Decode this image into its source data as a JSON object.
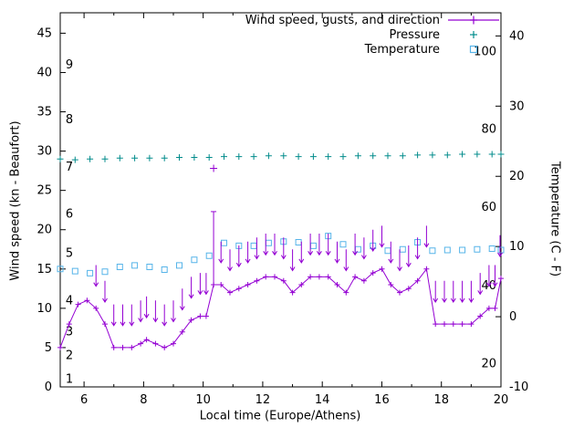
{
  "legend": {
    "wind_label": "Wind speed, gusts, and direction",
    "pressure_label": "Pressure",
    "temperature_label": "Temperature"
  },
  "axes": {
    "x_label": "Local time (Europe/Athens)",
    "y_left_label": "Wind speed (kn - Beaufort)",
    "y_right_label": "Temperature (C - F)"
  },
  "colors": {
    "wind": "#9400d3",
    "pressure": "#008b8b",
    "temperature": "#56b4e9",
    "axis": "#000000"
  },
  "chart_data": {
    "type": "line",
    "title": "",
    "legend_position": "top-right",
    "grid": false,
    "x_axis": {
      "label": "Local time (Europe/Athens)",
      "range": [
        5.2,
        20
      ],
      "major_ticks": [
        6,
        8,
        10,
        12,
        14,
        16,
        18,
        20
      ],
      "minor_ticks": [
        7,
        9,
        11,
        13,
        15,
        17,
        19
      ]
    },
    "y_left_axis": {
      "label": "Wind speed (kn - Beaufort)",
      "range": [
        0,
        47.6
      ],
      "ticks": [
        0,
        5,
        10,
        15,
        20,
        25,
        30,
        35,
        40,
        45
      ],
      "beaufort_labels": [
        {
          "label": "1",
          "kn": 1
        },
        {
          "label": "2",
          "kn": 4
        },
        {
          "label": "3",
          "kn": 7
        },
        {
          "label": "4",
          "kn": 11
        },
        {
          "label": "5",
          "kn": 17
        },
        {
          "label": "6",
          "kn": 22
        },
        {
          "label": "7",
          "kn": 28
        },
        {
          "label": "8",
          "kn": 34
        },
        {
          "label": "9",
          "kn": 41
        }
      ]
    },
    "y_right_axis": {
      "label": "Temperature (C - F)",
      "range": [
        -10,
        43.3
      ],
      "ticks": [
        -10,
        0,
        10,
        20,
        30,
        40
      ],
      "fahrenheit_labels": [
        {
          "label": "20",
          "c": -6.7
        },
        {
          "label": "40",
          "c": 4.4
        },
        {
          "label": "60",
          "c": 15.6
        },
        {
          "label": "80",
          "c": 26.7
        },
        {
          "label": "100",
          "c": 37.8
        }
      ]
    },
    "series": [
      {
        "id": "wind",
        "name": "Wind speed, gusts, and direction",
        "type": "line+points",
        "marker": "plus",
        "axis": "left",
        "unit": "kn",
        "x": [
          5.2,
          5.5,
          5.8,
          6.1,
          6.4,
          6.7,
          7.0,
          7.3,
          7.6,
          7.9,
          8.1,
          8.4,
          8.7,
          9.0,
          9.3,
          9.6,
          9.9,
          10.1,
          10.35,
          10.6,
          10.9,
          11.2,
          11.5,
          11.8,
          12.1,
          12.4,
          12.7,
          13.0,
          13.3,
          13.6,
          13.9,
          14.2,
          14.5,
          14.8,
          15.1,
          15.4,
          15.7,
          16.0,
          16.3,
          16.6,
          16.9,
          17.2,
          17.5,
          17.8,
          18.1,
          18.4,
          18.7,
          19.0,
          19.3,
          19.6,
          19.8,
          20.0
        ],
        "y": [
          5,
          8,
          10.5,
          11,
          10,
          8,
          5,
          5,
          5,
          5.5,
          6,
          5.5,
          5,
          5.5,
          7,
          8.5,
          9,
          9,
          13,
          13,
          12,
          12.5,
          13,
          13.5,
          14,
          14,
          13.5,
          12,
          13,
          14,
          14,
          14,
          13,
          12,
          14,
          13.5,
          14.5,
          15,
          13,
          12,
          12.5,
          13.5,
          15,
          8,
          8,
          8,
          8,
          8,
          9,
          10,
          10,
          13.8
        ]
      },
      {
        "id": "pressure",
        "name": "Pressure",
        "type": "points",
        "marker": "plus",
        "axis": "left",
        "note": "no numeric pressure scale shown; plotted near 29 on left axis",
        "x": [
          5.2,
          5.7,
          6.2,
          6.7,
          7.2,
          7.7,
          8.2,
          8.7,
          9.2,
          9.7,
          10.2,
          10.7,
          11.2,
          11.7,
          12.2,
          12.7,
          13.2,
          13.7,
          14.2,
          14.7,
          15.2,
          15.7,
          16.2,
          16.7,
          17.2,
          17.7,
          18.2,
          18.7,
          19.2,
          19.7,
          20.0
        ],
        "y": [
          29.0,
          28.9,
          29.0,
          29.0,
          29.1,
          29.1,
          29.1,
          29.1,
          29.2,
          29.2,
          29.2,
          29.3,
          29.3,
          29.3,
          29.4,
          29.4,
          29.3,
          29.3,
          29.3,
          29.3,
          29.4,
          29.4,
          29.4,
          29.4,
          29.5,
          29.5,
          29.5,
          29.6,
          29.6,
          29.6,
          29.6
        ]
      },
      {
        "id": "temperature",
        "name": "Temperature",
        "type": "points",
        "marker": "open-square",
        "axis": "right",
        "unit": "C",
        "x": [
          5.2,
          5.7,
          6.2,
          6.7,
          7.2,
          7.7,
          8.2,
          8.7,
          9.2,
          9.7,
          10.2,
          10.7,
          11.2,
          11.7,
          12.2,
          12.7,
          13.2,
          13.7,
          14.2,
          14.7,
          15.2,
          15.7,
          16.2,
          16.7,
          17.2,
          17.7,
          18.2,
          18.7,
          19.2,
          19.7,
          20.0
        ],
        "y": [
          6.8,
          6.5,
          6.2,
          6.4,
          7.1,
          7.3,
          7.1,
          6.7,
          7.3,
          8.1,
          8.7,
          10.5,
          10.1,
          10.1,
          10.5,
          10.7,
          10.6,
          10.1,
          11.5,
          10.3,
          9.6,
          10.1,
          9.4,
          9.6,
          10.6,
          9.4,
          9.5,
          9.5,
          9.6,
          9.7,
          9.5
        ]
      }
    ],
    "gust": {
      "x": 10.35,
      "bar_low": 13,
      "bar_high": 22.3,
      "peak": 27.8
    },
    "direction_arrows": {
      "note": "downward (northerly) wind direction arrows drawn above the wind line",
      "offset_tail_kn": 5.5,
      "offset_tip_kn": 2.8,
      "x": [
        6.4,
        6.7,
        7.0,
        7.3,
        7.6,
        7.9,
        8.1,
        8.4,
        8.7,
        9.0,
        9.3,
        9.6,
        9.9,
        10.1,
        10.6,
        10.9,
        11.2,
        11.5,
        11.8,
        12.1,
        12.4,
        12.7,
        13.0,
        13.3,
        13.6,
        13.9,
        14.2,
        14.5,
        14.8,
        15.1,
        15.4,
        15.7,
        16.0,
        16.3,
        16.6,
        16.9,
        17.2,
        17.5,
        17.8,
        18.1,
        18.4,
        18.7,
        19.0,
        19.3,
        19.6,
        19.8,
        20.0
      ],
      "wind_at": [
        10,
        8,
        5,
        5,
        5,
        5.5,
        6,
        5.5,
        5,
        5.5,
        7,
        8.5,
        9,
        9,
        13,
        12,
        12.5,
        13,
        13.5,
        14,
        14,
        13.5,
        12,
        13,
        14,
        14,
        14,
        13,
        12,
        14,
        13.5,
        14.5,
        15,
        13,
        12,
        12.5,
        13.5,
        15,
        8,
        8,
        8,
        8,
        8,
        9,
        10,
        10,
        13.8
      ]
    }
  }
}
